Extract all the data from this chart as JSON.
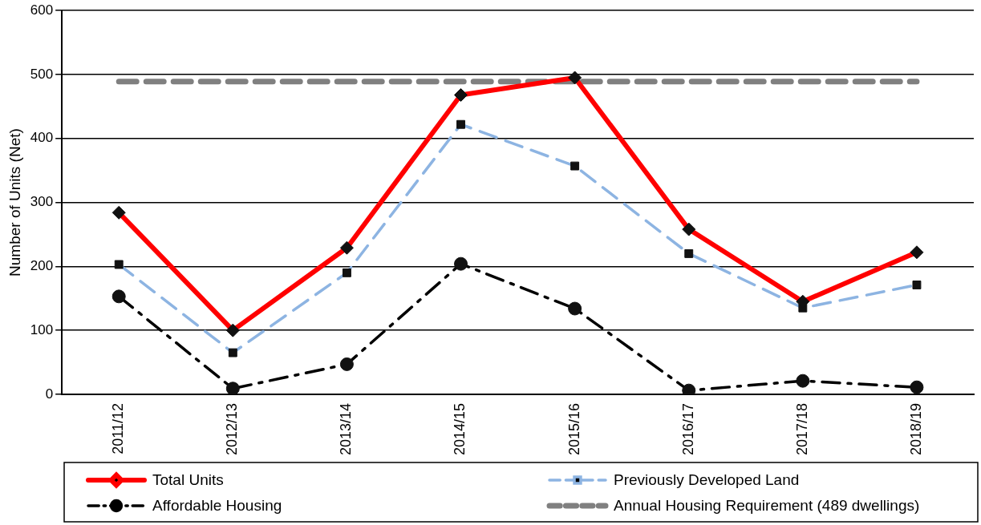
{
  "chart_data": {
    "type": "line",
    "ylabel": "Number of Units (Net)",
    "categories": [
      "2011/12",
      "2012/13",
      "2013/14",
      "2014/15",
      "2015/16",
      "2016/17",
      "2017/18",
      "2018/19"
    ],
    "series": [
      {
        "name": "Total Units",
        "color": "#ff0000",
        "marker": "diamond",
        "line_style": "solid",
        "values": [
          284,
          100,
          229,
          468,
          495,
          258,
          145,
          222
        ]
      },
      {
        "name": "Previously Developed Land",
        "color": "#8db4e2",
        "marker": "square",
        "line_style": "dashed",
        "values": [
          203,
          65,
          190,
          422,
          357,
          220,
          135,
          171
        ]
      },
      {
        "name": "Affordable Housing",
        "color": "#000000",
        "marker": "circle",
        "line_style": "dashdot",
        "values": [
          153,
          9,
          47,
          204,
          134,
          6,
          21,
          11
        ]
      },
      {
        "name": "Annual Housing Requirement (489 dwellings)",
        "color": "#808080",
        "marker": "none",
        "line_style": "dashed",
        "values": [
          489,
          489,
          489,
          489,
          489,
          489,
          489,
          489
        ]
      }
    ],
    "ylim": [
      0,
      600
    ],
    "yticks": [
      0,
      100,
      200,
      300,
      400,
      500,
      600
    ],
    "grid": "y",
    "legend": "bottom"
  }
}
